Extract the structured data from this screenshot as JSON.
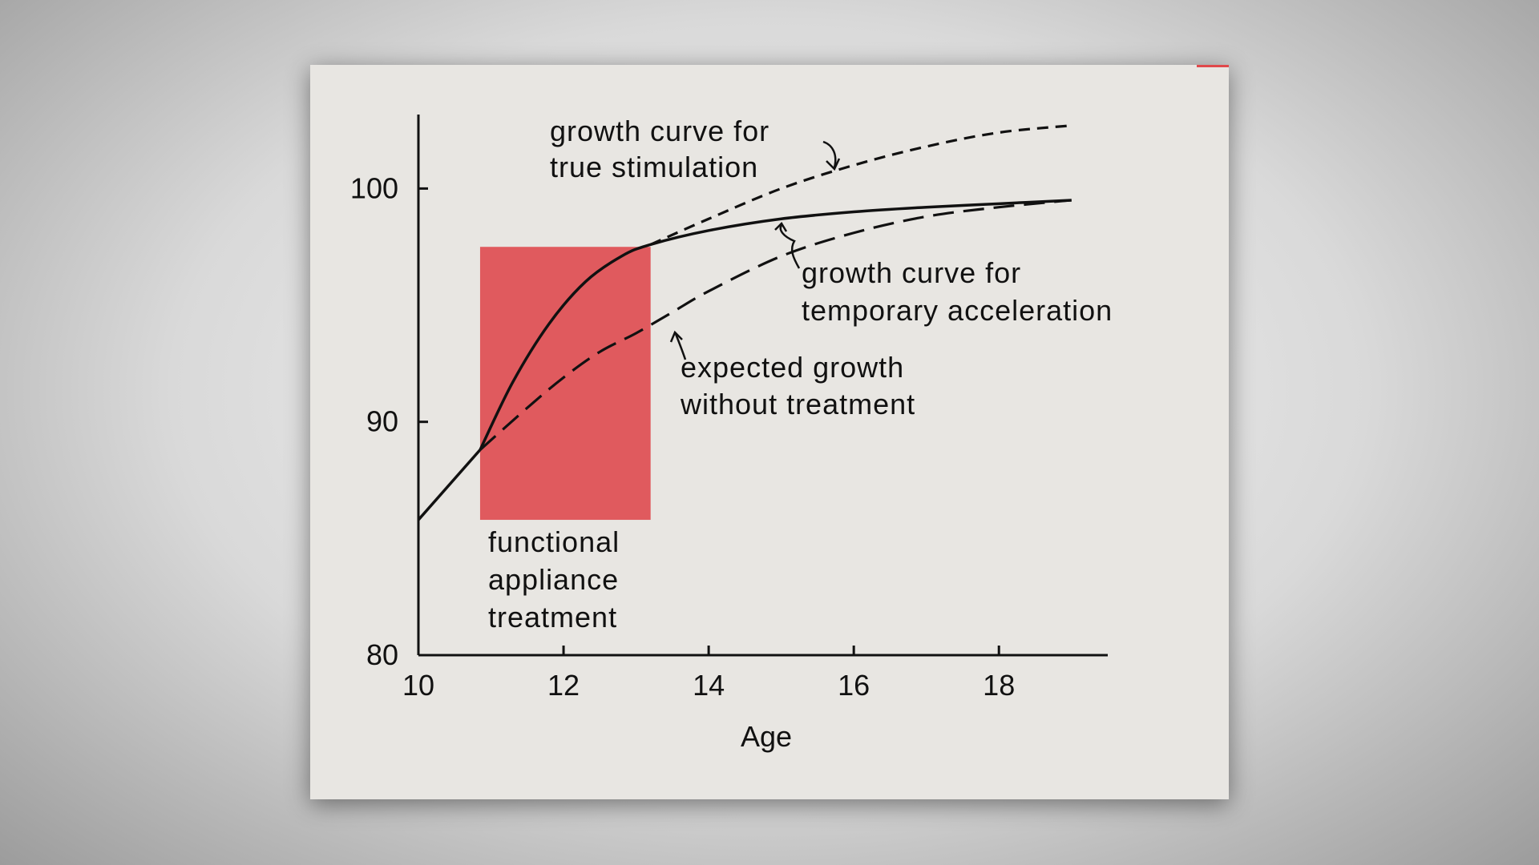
{
  "chart_data": {
    "type": "line",
    "title": "",
    "xlabel": "Age",
    "ylabel": "",
    "xlim": [
      10,
      19.5
    ],
    "ylim": [
      80,
      103
    ],
    "x_ticks": [
      10,
      12,
      14,
      16,
      18
    ],
    "y_ticks": [
      80,
      90,
      100
    ],
    "grid": false,
    "colors": {
      "line": "#111111",
      "shade": "#e05a5e",
      "paper": "#e8e6e2"
    },
    "shaded_region": {
      "x": [
        10.85,
        13.2
      ],
      "y": [
        85.8,
        97.5
      ],
      "label_lines": [
        "functional",
        "appliance",
        "treatment"
      ]
    },
    "series": [
      {
        "id": "base",
        "style": "solid",
        "points": [
          [
            10.0,
            85.8
          ],
          [
            10.85,
            88.8
          ]
        ]
      },
      {
        "id": "actual",
        "style": "solid",
        "points": [
          [
            10.85,
            88.8
          ],
          [
            11.3,
            91.7
          ],
          [
            11.8,
            94.2
          ],
          [
            12.3,
            96.0
          ],
          [
            12.8,
            97.1
          ],
          [
            13.2,
            97.6
          ],
          [
            14.0,
            98.2
          ],
          [
            15.0,
            98.7
          ],
          [
            16.0,
            99.0
          ],
          [
            17.0,
            99.2
          ],
          [
            18.0,
            99.35
          ],
          [
            19.0,
            99.5
          ]
        ]
      },
      {
        "id": "expected",
        "style": "long-dash",
        "label_lines": [
          "expected growth",
          "without treatment"
        ],
        "points": [
          [
            10.85,
            88.8
          ],
          [
            11.5,
            90.6
          ],
          [
            12.0,
            91.9
          ],
          [
            12.5,
            93.0
          ],
          [
            13.0,
            93.8
          ],
          [
            13.5,
            94.7
          ],
          [
            14.0,
            95.6
          ],
          [
            15.0,
            97.1
          ],
          [
            16.0,
            98.1
          ],
          [
            17.0,
            98.8
          ],
          [
            18.0,
            99.2
          ],
          [
            19.0,
            99.5
          ]
        ]
      },
      {
        "id": "stimulation",
        "style": "short-dash",
        "label_lines": [
          "growth curve for",
          "true stimulation"
        ],
        "points": [
          [
            13.2,
            97.6
          ],
          [
            14.0,
            98.7
          ],
          [
            15.0,
            100.0
          ],
          [
            16.0,
            101.0
          ],
          [
            17.0,
            101.8
          ],
          [
            18.0,
            102.4
          ],
          [
            19.0,
            102.7
          ]
        ]
      }
    ],
    "annotations": [
      {
        "id": "temporary",
        "label_lines": [
          "growth curve for",
          "temporary acceleration"
        ]
      }
    ]
  }
}
